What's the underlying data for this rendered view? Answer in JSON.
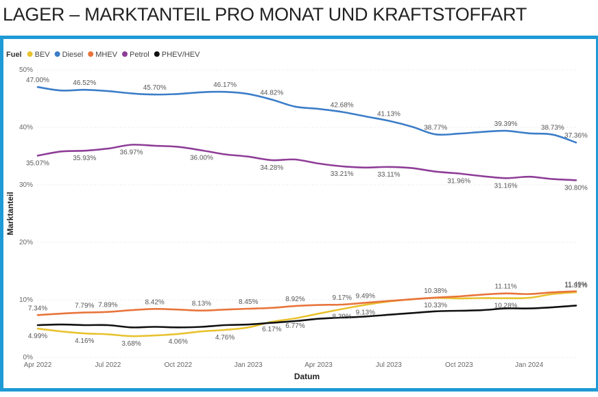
{
  "page": {
    "title": "LAGER – MARKTANTEIL PRO MONAT UND KRAFTSTOFFART"
  },
  "colors": {
    "frame": "#1e9ad6",
    "grid": "#d9d9d9"
  },
  "chart_data": {
    "type": "line",
    "xlabel": "Datum",
    "ylabel": "Marktanteil",
    "legend": {
      "title": "Fuel",
      "position": "top-left"
    },
    "ylim": [
      0,
      50
    ],
    "yticks": [
      0,
      10,
      20,
      30,
      40,
      50
    ],
    "ytick_labels": [
      "0%",
      "10%",
      "20%",
      "30%",
      "40%",
      "50%"
    ],
    "x_range": [
      "2022-04",
      "2024-03"
    ],
    "x": [
      "2022-04",
      "2022-05",
      "2022-06",
      "2022-07",
      "2022-08",
      "2022-09",
      "2022-10",
      "2022-11",
      "2022-12",
      "2023-01",
      "2023-02",
      "2023-03",
      "2023-04",
      "2023-05",
      "2023-06",
      "2023-07",
      "2023-08",
      "2023-09",
      "2023-10",
      "2023-11",
      "2023-12",
      "2024-01",
      "2024-02",
      "2024-03"
    ],
    "xticks": [
      "2022-04",
      "2022-07",
      "2022-10",
      "2023-01",
      "2023-04",
      "2023-07",
      "2023-10",
      "2024-01"
    ],
    "xtick_labels": [
      "Apr 2022",
      "Jul 2022",
      "Oct 2022",
      "Jan 2023",
      "Apr 2023",
      "Jul 2023",
      "Oct 2023",
      "Jan 2024"
    ],
    "grid": "horizontal dotted",
    "series": [
      {
        "name": "BEV",
        "color": "#e8c22f",
        "values": [
          4.99,
          4.5,
          4.16,
          4.0,
          3.68,
          3.8,
          4.06,
          4.5,
          4.76,
          5.2,
          6.17,
          6.77,
          7.6,
          8.39,
          9.13,
          9.7,
          10.1,
          10.33,
          10.25,
          10.3,
          10.28,
          10.35,
          11.0,
          11.31
        ],
        "labels": [
          {
            "i": 0,
            "text": "4.99%",
            "pos": "below"
          },
          {
            "i": 2,
            "text": "4.16%",
            "pos": "below"
          },
          {
            "i": 4,
            "text": "3.68%",
            "pos": "below"
          },
          {
            "i": 6,
            "text": "4.06%",
            "pos": "below"
          },
          {
            "i": 8,
            "text": "4.76%",
            "pos": "below"
          },
          {
            "i": 10,
            "text": "6.17%",
            "pos": "below"
          },
          {
            "i": 11,
            "text": "6.77%",
            "pos": "below"
          },
          {
            "i": 13,
            "text": "8.39%",
            "pos": "below"
          },
          {
            "i": 14,
            "text": "9.13%",
            "pos": "below"
          },
          {
            "i": 17,
            "text": "10.33%",
            "pos": "below"
          },
          {
            "i": 20,
            "text": "10.28%",
            "pos": "below"
          },
          {
            "i": 23,
            "text": "11.31%",
            "pos": "above"
          }
        ]
      },
      {
        "name": "Diesel",
        "color": "#3b7dc8",
        "values": [
          47.0,
          46.4,
          46.52,
          46.3,
          45.9,
          45.7,
          45.8,
          46.1,
          46.17,
          45.8,
          44.82,
          43.6,
          43.2,
          42.68,
          41.9,
          41.13,
          40.1,
          38.77,
          38.9,
          39.2,
          39.39,
          38.95,
          38.73,
          37.36
        ],
        "labels": [
          {
            "i": 0,
            "text": "47.00%",
            "pos": "above"
          },
          {
            "i": 2,
            "text": "46.52%",
            "pos": "above"
          },
          {
            "i": 5,
            "text": "45.70%",
            "pos": "above"
          },
          {
            "i": 8,
            "text": "46.17%",
            "pos": "above"
          },
          {
            "i": 10,
            "text": "44.82%",
            "pos": "above"
          },
          {
            "i": 13,
            "text": "42.68%",
            "pos": "above"
          },
          {
            "i": 15,
            "text": "41.13%",
            "pos": "above"
          },
          {
            "i": 17,
            "text": "38.77%",
            "pos": "above"
          },
          {
            "i": 20,
            "text": "39.39%",
            "pos": "above"
          },
          {
            "i": 22,
            "text": "38.73%",
            "pos": "above"
          },
          {
            "i": 23,
            "text": "37.36%",
            "pos": "above"
          }
        ]
      },
      {
        "name": "MHEV",
        "color": "#e8743b",
        "values": [
          7.34,
          7.6,
          7.79,
          7.89,
          8.2,
          8.42,
          8.3,
          8.13,
          8.3,
          8.45,
          8.6,
          8.92,
          9.1,
          9.17,
          9.49,
          9.8,
          10.1,
          10.38,
          10.6,
          10.9,
          11.11,
          11.0,
          11.3,
          11.49
        ],
        "labels": [
          {
            "i": 0,
            "text": "7.34%",
            "pos": "above"
          },
          {
            "i": 2,
            "text": "7.79%",
            "pos": "above"
          },
          {
            "i": 3,
            "text": "7.89%",
            "pos": "above"
          },
          {
            "i": 5,
            "text": "8.42%",
            "pos": "above"
          },
          {
            "i": 7,
            "text": "8.13%",
            "pos": "above"
          },
          {
            "i": 9,
            "text": "8.45%",
            "pos": "above"
          },
          {
            "i": 11,
            "text": "8.92%",
            "pos": "above"
          },
          {
            "i": 13,
            "text": "9.17%",
            "pos": "above"
          },
          {
            "i": 14,
            "text": "9.49%",
            "pos": "above"
          },
          {
            "i": 17,
            "text": "10.38%",
            "pos": "above"
          },
          {
            "i": 20,
            "text": "11.11%",
            "pos": "above"
          },
          {
            "i": 23,
            "text": "11.49%",
            "pos": "above"
          }
        ]
      },
      {
        "name": "Petrol",
        "color": "#8e3d97",
        "values": [
          35.07,
          35.8,
          35.93,
          36.3,
          36.97,
          36.8,
          36.6,
          36.0,
          35.3,
          34.9,
          34.28,
          34.4,
          33.7,
          33.21,
          33.0,
          33.11,
          32.9,
          32.3,
          31.96,
          31.5,
          31.16,
          31.4,
          31.0,
          30.8
        ],
        "labels": [
          {
            "i": 0,
            "text": "35.07%",
            "pos": "below"
          },
          {
            "i": 2,
            "text": "35.93%",
            "pos": "below"
          },
          {
            "i": 4,
            "text": "36.97%",
            "pos": "below"
          },
          {
            "i": 7,
            "text": "36.00%",
            "pos": "below"
          },
          {
            "i": 10,
            "text": "34.28%",
            "pos": "below"
          },
          {
            "i": 13,
            "text": "33.21%",
            "pos": "below"
          },
          {
            "i": 15,
            "text": "33.11%",
            "pos": "below"
          },
          {
            "i": 18,
            "text": "31.96%",
            "pos": "below"
          },
          {
            "i": 20,
            "text": "31.16%",
            "pos": "below"
          },
          {
            "i": 23,
            "text": "30.80%",
            "pos": "below"
          }
        ]
      },
      {
        "name": "PHEV/HEV",
        "color": "#111111",
        "values": [
          5.6,
          5.7,
          5.6,
          5.6,
          5.2,
          5.3,
          5.2,
          5.3,
          5.6,
          5.7,
          6.0,
          6.3,
          6.7,
          6.9,
          7.1,
          7.4,
          7.7,
          8.0,
          8.1,
          8.2,
          8.5,
          8.5,
          8.7,
          9.0
        ],
        "labels": []
      }
    ]
  }
}
